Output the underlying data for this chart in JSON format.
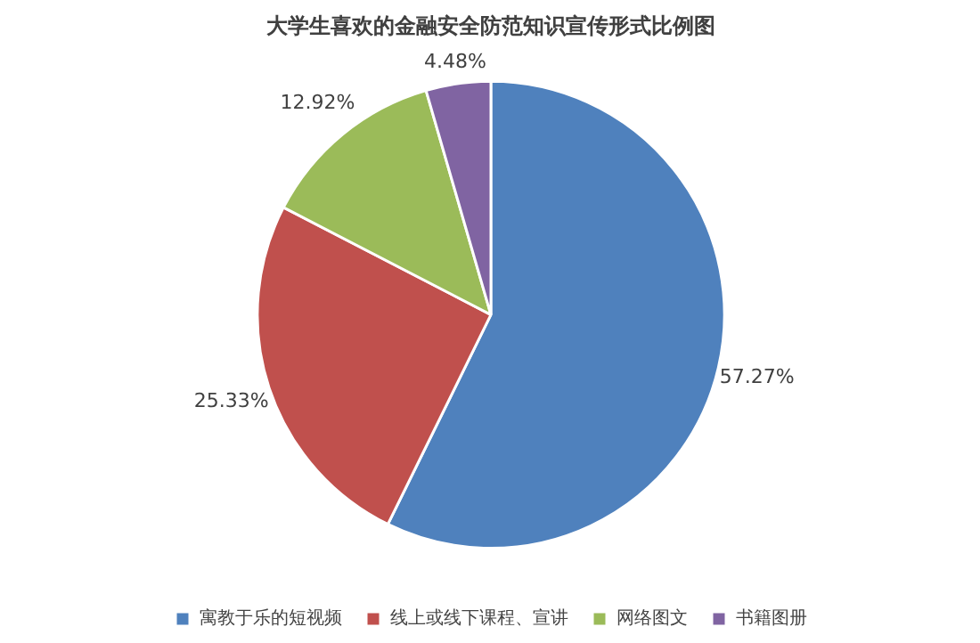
{
  "chart_data": {
    "type": "pie",
    "title": "大学生喜欢的金融安全防范知识宣传形式比例图",
    "categories": [
      "寓教于乐的短视频",
      "线上或线下课程、宣讲",
      "网络图文",
      "书籍图册"
    ],
    "values": [
      57.27,
      25.33,
      12.92,
      4.48
    ],
    "value_labels": [
      "57.27%",
      "25.33%",
      "12.92%",
      "4.48%"
    ],
    "colors": [
      "#4f81bd",
      "#c0504d",
      "#9bbb59",
      "#8064a2"
    ],
    "legend": "bottom"
  }
}
